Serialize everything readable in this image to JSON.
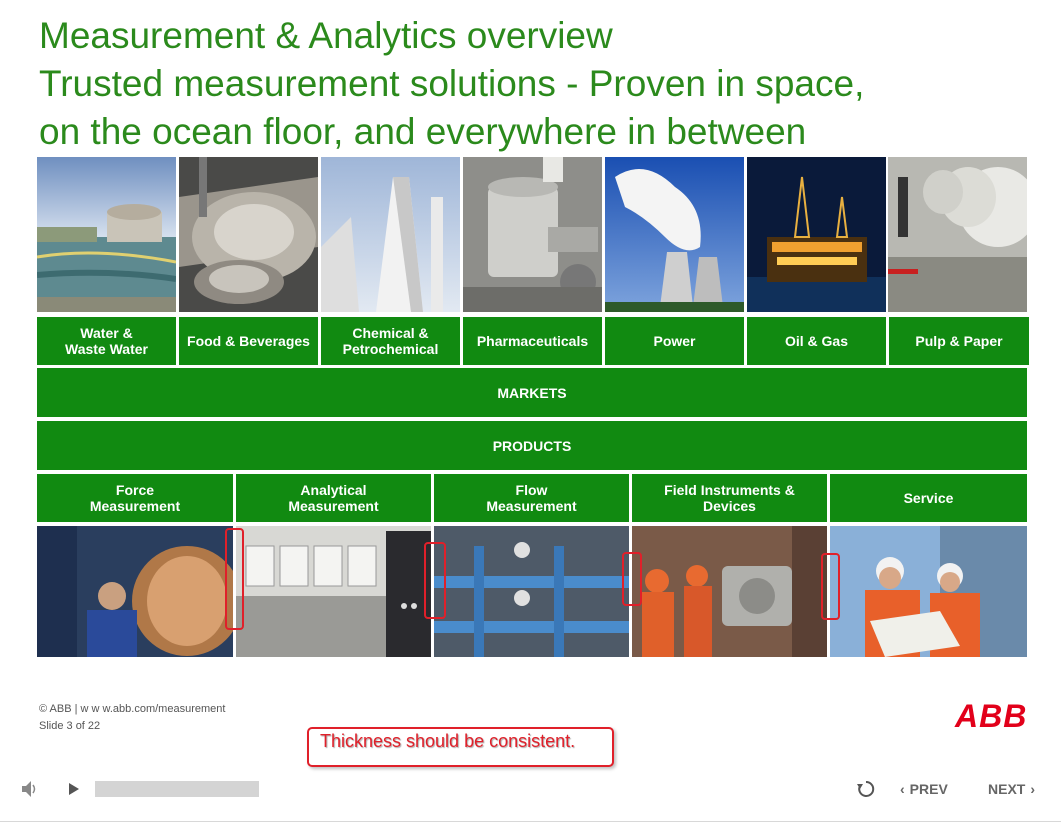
{
  "slide": {
    "title_line1": "Measurement & Analytics overview",
    "title_line2": "Trusted measurement solutions - Proven in space,",
    "title_line3": "on the ocean floor, and everywhere in between"
  },
  "markets": [
    "Water &\nWaste Water",
    "Food & Beverages",
    "Chemical &\nPetrochemical",
    "Pharmaceuticals",
    "Power",
    "Oil & Gas",
    "Pulp & Paper"
  ],
  "markets_label": "MARKETS",
  "products_label": "PRODUCTS",
  "products": [
    "Force\nMeasurement",
    "Analytical\nMeasurement",
    "Flow\nMeasurement",
    "Field Instruments &\nDevices",
    "Service"
  ],
  "footer": {
    "copyright": "© ABB | w w w.abb.com/measurement",
    "slide_counter": "Slide 3 of 22",
    "logo": "ABB"
  },
  "annotation": {
    "text": "Thickness should be consistent."
  },
  "player": {
    "prev_label": "PREV",
    "next_label": "NEXT"
  },
  "colors": {
    "green": "#118a11",
    "title_green": "#2b8a1c",
    "annotation_red": "#e0202a",
    "abb_red": "#e2001a"
  }
}
